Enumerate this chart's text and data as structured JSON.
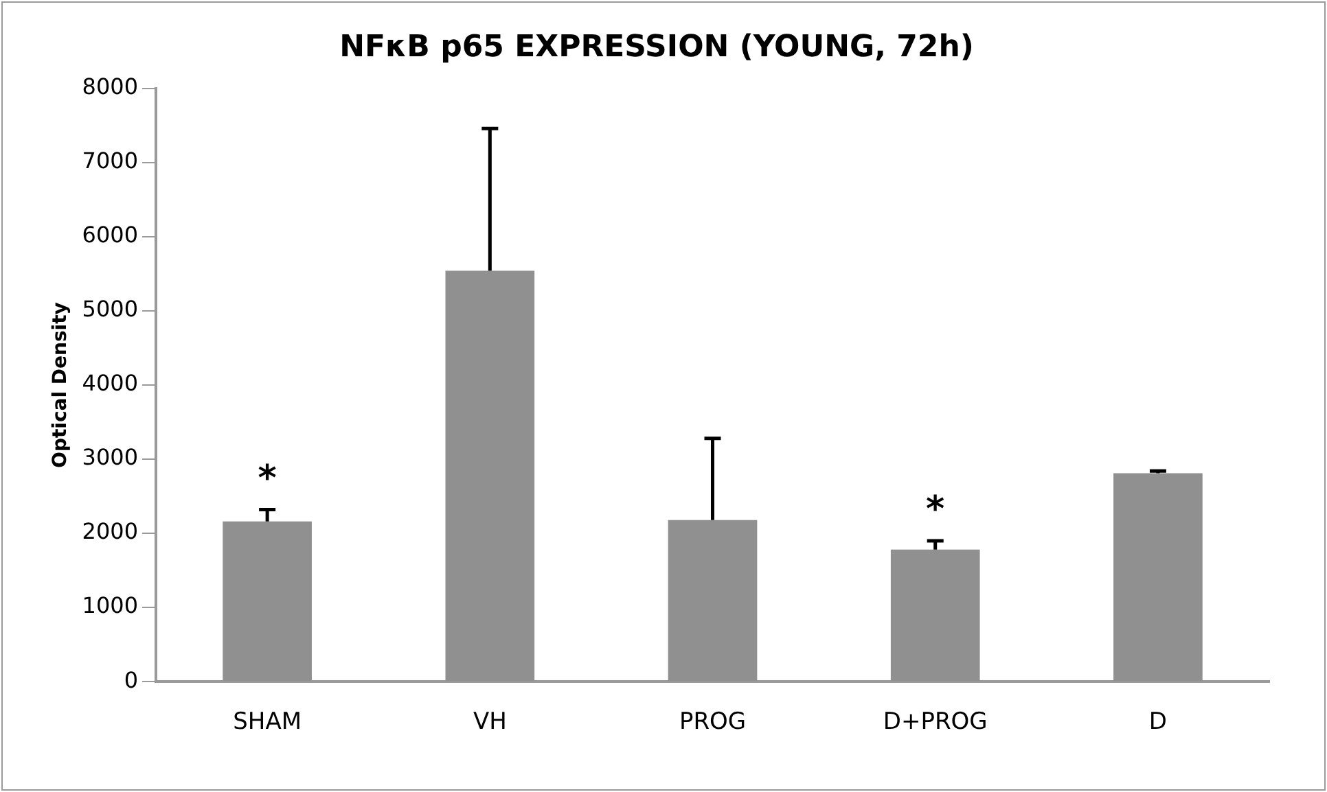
{
  "chart_data": {
    "type": "bar",
    "title": "NFκB p65 EXPRESSION (YOUNG, 72h)",
    "ylabel": "Optical Density",
    "categories": [
      "SHAM",
      "VH",
      "PROG",
      "D+PROG",
      "D"
    ],
    "values": [
      2160,
      5540,
      2180,
      1780,
      2810
    ],
    "errors": [
      [
        2160,
        2320
      ],
      [
        5540,
        7460
      ],
      [
        2180,
        3280
      ],
      [
        1780,
        1900
      ],
      [
        2810,
        2840
      ]
    ],
    "color": "#8f908f",
    "ylim": [
      0,
      8000
    ],
    "yticks": [
      0,
      1000,
      2000,
      3000,
      4000,
      5000,
      6000,
      7000,
      8000
    ],
    "grid": false,
    "legend": false,
    "annotations": [
      {
        "text": "*",
        "x": "SHAM",
        "y": 2160
      },
      {
        "text": "*",
        "x": "D+PROG",
        "y": 1780
      }
    ]
  }
}
